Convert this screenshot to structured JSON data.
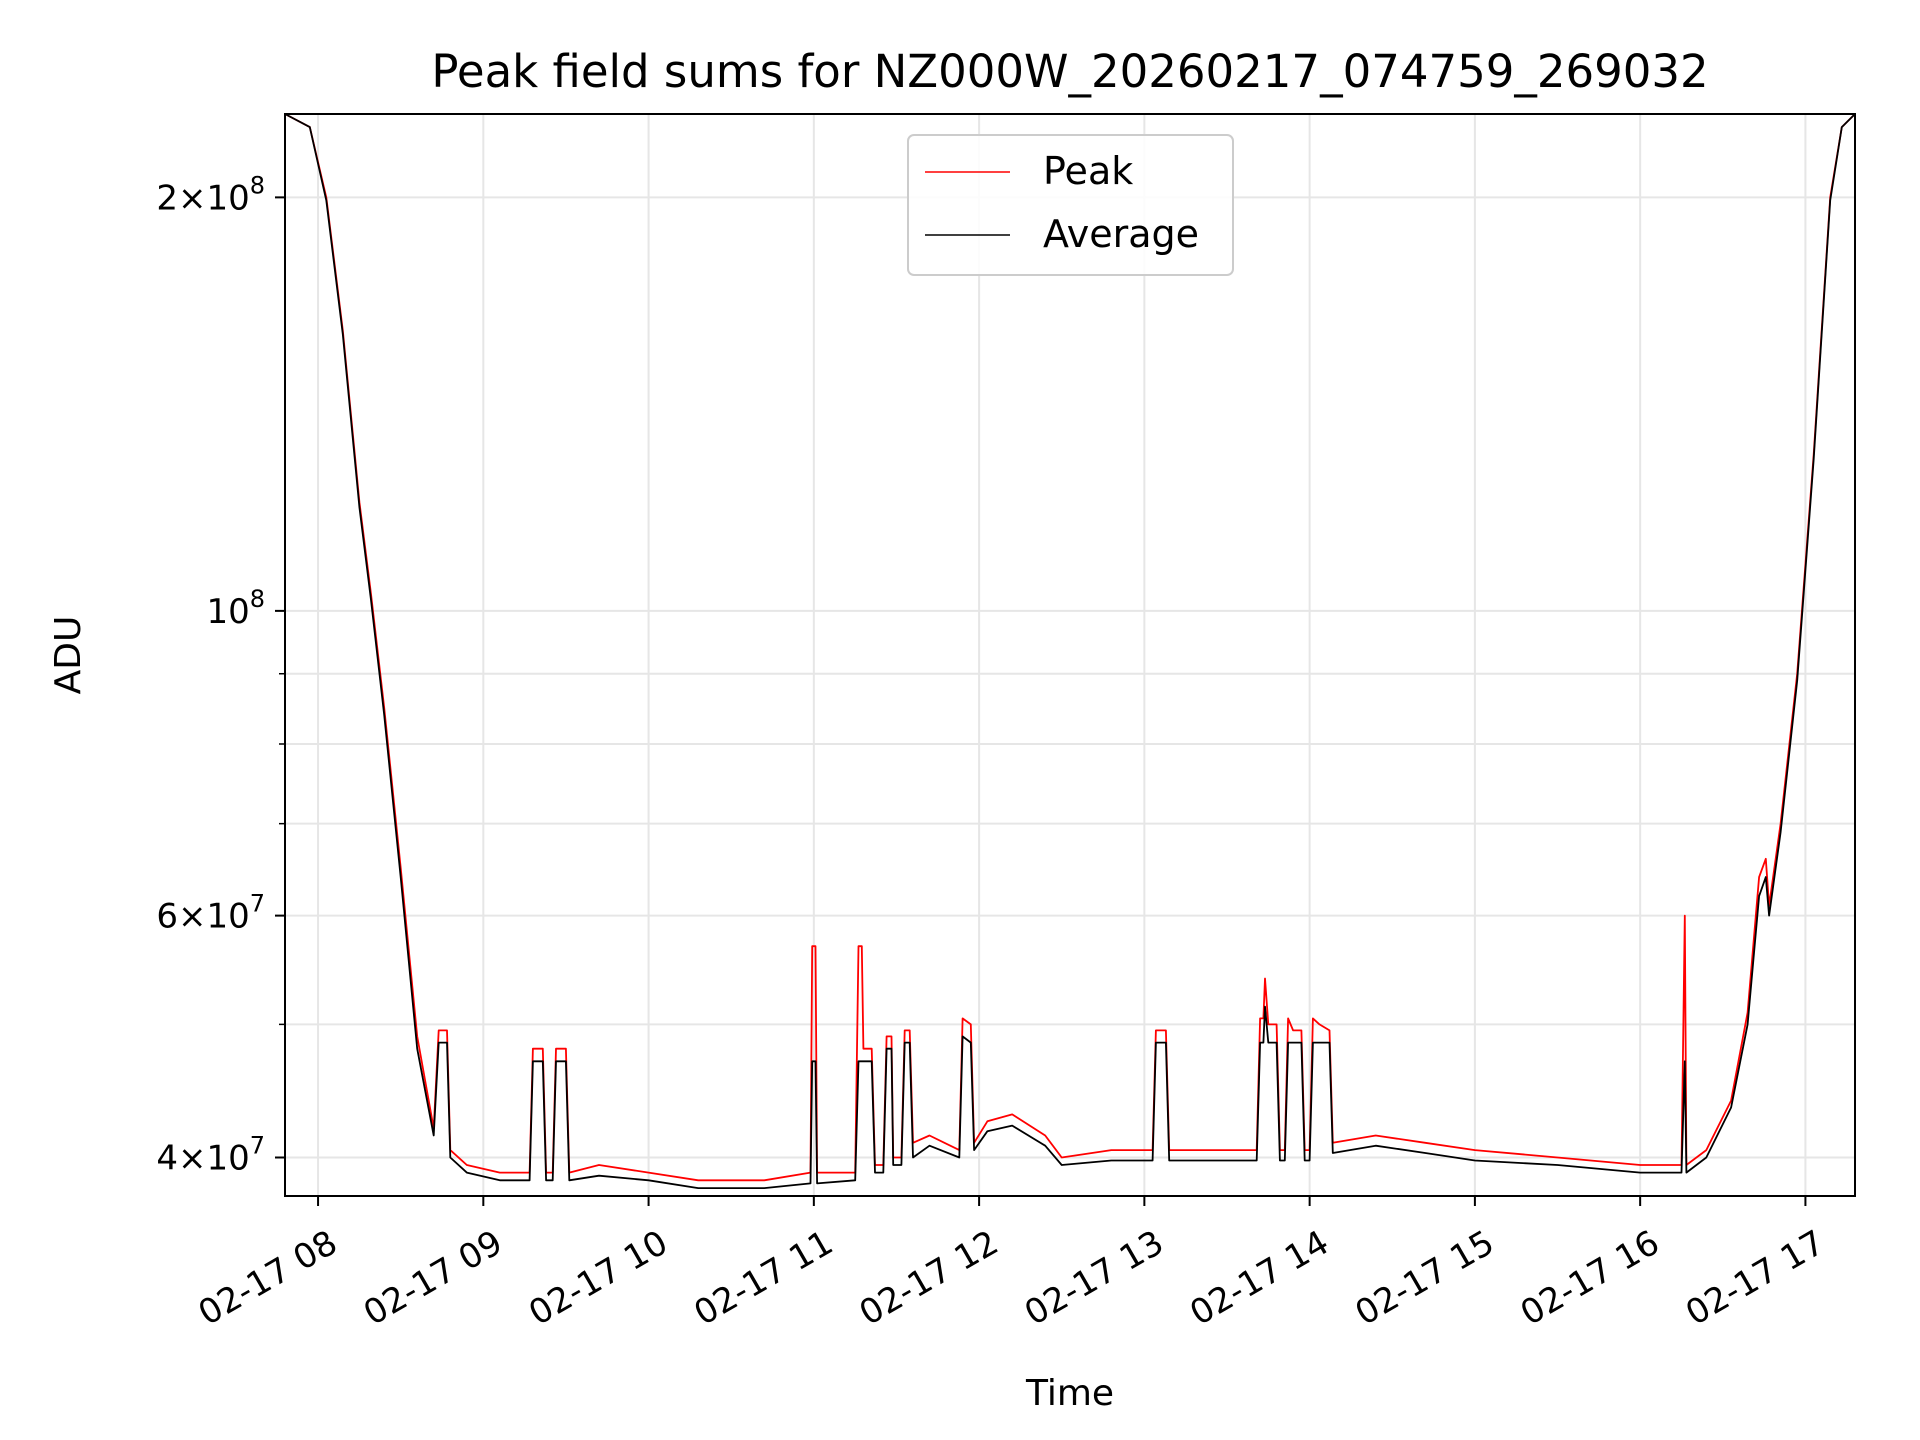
{
  "chart_data": {
    "type": "line",
    "title": "Peak field sums for NZ000W_20260217_074759_269032",
    "xlabel": "Time",
    "ylabel": "ADU",
    "yscale": "log",
    "ylim": [
      37500000,
      230000000
    ],
    "xlim": [
      7.8,
      17.3
    ],
    "grid": true,
    "legend_position": "upper center",
    "x_ticks": [
      {
        "value": 8,
        "label": "02-17 08"
      },
      {
        "value": 9,
        "label": "02-17 09"
      },
      {
        "value": 10,
        "label": "02-17 10"
      },
      {
        "value": 11,
        "label": "02-17 11"
      },
      {
        "value": 12,
        "label": "02-17 12"
      },
      {
        "value": 13,
        "label": "02-17 13"
      },
      {
        "value": 14,
        "label": "02-17 14"
      },
      {
        "value": 15,
        "label": "02-17 15"
      },
      {
        "value": 16,
        "label": "02-17 16"
      },
      {
        "value": 17,
        "label": "02-17 17"
      }
    ],
    "y_major_ticks": [
      {
        "value": 40000000,
        "base": "4",
        "exp": "7"
      },
      {
        "value": 60000000,
        "base": "6",
        "exp": "7"
      },
      {
        "value": 100000000,
        "base": "",
        "exp": "8"
      },
      {
        "value": 200000000,
        "base": "2",
        "exp": "8"
      }
    ],
    "y_minor_ticks": [
      50000000,
      70000000,
      80000000,
      90000000
    ],
    "series": [
      {
        "name": "Peak",
        "color": "#ff0000",
        "points": [
          [
            7.8,
            230000000
          ],
          [
            7.95,
            225000000
          ],
          [
            8.05,
            200000000
          ],
          [
            8.15,
            160000000
          ],
          [
            8.25,
            120000000
          ],
          [
            8.32,
            103000000
          ],
          [
            8.4,
            85000000
          ],
          [
            8.5,
            65000000
          ],
          [
            8.6,
            49000000
          ],
          [
            8.7,
            42000000
          ],
          [
            8.73,
            49500000
          ],
          [
            8.78,
            49500000
          ],
          [
            8.8,
            40500000
          ],
          [
            8.9,
            39500000
          ],
          [
            9.1,
            39000000
          ],
          [
            9.28,
            39000000
          ],
          [
            9.3,
            48000000
          ],
          [
            9.36,
            48000000
          ],
          [
            9.38,
            39000000
          ],
          [
            9.42,
            39000000
          ],
          [
            9.44,
            48000000
          ],
          [
            9.5,
            48000000
          ],
          [
            9.52,
            39000000
          ],
          [
            9.7,
            39500000
          ],
          [
            10.0,
            39000000
          ],
          [
            10.3,
            38500000
          ],
          [
            10.7,
            38500000
          ],
          [
            10.98,
            39000000
          ],
          [
            10.99,
            57000000
          ],
          [
            11.01,
            57000000
          ],
          [
            11.02,
            39000000
          ],
          [
            11.25,
            39000000
          ],
          [
            11.27,
            57000000
          ],
          [
            11.29,
            57000000
          ],
          [
            11.3,
            48000000
          ],
          [
            11.35,
            48000000
          ],
          [
            11.37,
            39500000
          ],
          [
            11.42,
            39500000
          ],
          [
            11.44,
            49000000
          ],
          [
            11.47,
            49000000
          ],
          [
            11.48,
            40000000
          ],
          [
            11.53,
            40000000
          ],
          [
            11.55,
            49500000
          ],
          [
            11.58,
            49500000
          ],
          [
            11.6,
            41000000
          ],
          [
            11.7,
            41500000
          ],
          [
            11.88,
            40500000
          ],
          [
            11.9,
            50500000
          ],
          [
            11.95,
            50000000
          ],
          [
            11.97,
            41000000
          ],
          [
            12.05,
            42500000
          ],
          [
            12.2,
            43000000
          ],
          [
            12.4,
            41500000
          ],
          [
            12.5,
            40000000
          ],
          [
            12.8,
            40500000
          ],
          [
            13.05,
            40500000
          ],
          [
            13.07,
            49500000
          ],
          [
            13.13,
            49500000
          ],
          [
            13.15,
            40500000
          ],
          [
            13.5,
            40500000
          ],
          [
            13.68,
            40500000
          ],
          [
            13.7,
            50500000
          ],
          [
            13.72,
            50500000
          ],
          [
            13.73,
            54000000
          ],
          [
            13.75,
            50000000
          ],
          [
            13.8,
            50000000
          ],
          [
            13.82,
            40500000
          ],
          [
            13.85,
            40500000
          ],
          [
            13.87,
            50500000
          ],
          [
            13.9,
            49500000
          ],
          [
            13.95,
            49500000
          ],
          [
            13.97,
            40500000
          ],
          [
            14.0,
            40500000
          ],
          [
            14.02,
            50500000
          ],
          [
            14.06,
            50000000
          ],
          [
            14.12,
            49500000
          ],
          [
            14.14,
            41000000
          ],
          [
            14.4,
            41500000
          ],
          [
            14.7,
            41000000
          ],
          [
            15.0,
            40500000
          ],
          [
            15.5,
            40000000
          ],
          [
            16.0,
            39500000
          ],
          [
            16.25,
            39500000
          ],
          [
            16.27,
            60000000
          ],
          [
            16.28,
            39500000
          ],
          [
            16.4,
            40500000
          ],
          [
            16.55,
            44000000
          ],
          [
            16.65,
            51000000
          ],
          [
            16.72,
            64000000
          ],
          [
            16.76,
            66000000
          ],
          [
            16.78,
            61000000
          ],
          [
            16.85,
            70000000
          ],
          [
            16.95,
            90000000
          ],
          [
            17.05,
            130000000
          ],
          [
            17.15,
            200000000
          ],
          [
            17.22,
            225000000
          ],
          [
            17.3,
            230000000
          ]
        ]
      },
      {
        "name": "Average",
        "color": "#000000",
        "points": [
          [
            7.8,
            230000000
          ],
          [
            7.95,
            225000000
          ],
          [
            8.05,
            199000000
          ],
          [
            8.15,
            159000000
          ],
          [
            8.25,
            119000000
          ],
          [
            8.32,
            102000000
          ],
          [
            8.4,
            84000000
          ],
          [
            8.5,
            64000000
          ],
          [
            8.6,
            48000000
          ],
          [
            8.7,
            41500000
          ],
          [
            8.73,
            48500000
          ],
          [
            8.78,
            48500000
          ],
          [
            8.8,
            40000000
          ],
          [
            8.9,
            39000000
          ],
          [
            9.1,
            38500000
          ],
          [
            9.28,
            38500000
          ],
          [
            9.3,
            47000000
          ],
          [
            9.36,
            47000000
          ],
          [
            9.38,
            38500000
          ],
          [
            9.42,
            38500000
          ],
          [
            9.44,
            47000000
          ],
          [
            9.5,
            47000000
          ],
          [
            9.52,
            38500000
          ],
          [
            9.7,
            38800000
          ],
          [
            10.0,
            38500000
          ],
          [
            10.3,
            38000000
          ],
          [
            10.7,
            38000000
          ],
          [
            10.98,
            38300000
          ],
          [
            10.99,
            47000000
          ],
          [
            11.01,
            47000000
          ],
          [
            11.02,
            38300000
          ],
          [
            11.25,
            38500000
          ],
          [
            11.27,
            47000000
          ],
          [
            11.29,
            47000000
          ],
          [
            11.3,
            47000000
          ],
          [
            11.35,
            47000000
          ],
          [
            11.37,
            39000000
          ],
          [
            11.42,
            39000000
          ],
          [
            11.44,
            48000000
          ],
          [
            11.47,
            48000000
          ],
          [
            11.48,
            39500000
          ],
          [
            11.53,
            39500000
          ],
          [
            11.55,
            48500000
          ],
          [
            11.58,
            48500000
          ],
          [
            11.6,
            40000000
          ],
          [
            11.7,
            40800000
          ],
          [
            11.88,
            40000000
          ],
          [
            11.9,
            49000000
          ],
          [
            11.95,
            48500000
          ],
          [
            11.97,
            40500000
          ],
          [
            12.05,
            41800000
          ],
          [
            12.2,
            42200000
          ],
          [
            12.4,
            40800000
          ],
          [
            12.5,
            39500000
          ],
          [
            12.8,
            39800000
          ],
          [
            13.05,
            39800000
          ],
          [
            13.07,
            48500000
          ],
          [
            13.13,
            48500000
          ],
          [
            13.15,
            39800000
          ],
          [
            13.5,
            39800000
          ],
          [
            13.68,
            39800000
          ],
          [
            13.7,
            48500000
          ],
          [
            13.72,
            48500000
          ],
          [
            13.73,
            51500000
          ],
          [
            13.75,
            48500000
          ],
          [
            13.8,
            48500000
          ],
          [
            13.82,
            39800000
          ],
          [
            13.85,
            39800000
          ],
          [
            13.87,
            48500000
          ],
          [
            13.9,
            48500000
          ],
          [
            13.95,
            48500000
          ],
          [
            13.97,
            39800000
          ],
          [
            14.0,
            39800000
          ],
          [
            14.02,
            48500000
          ],
          [
            14.06,
            48500000
          ],
          [
            14.12,
            48500000
          ],
          [
            14.14,
            40300000
          ],
          [
            14.4,
            40800000
          ],
          [
            14.7,
            40300000
          ],
          [
            15.0,
            39800000
          ],
          [
            15.5,
            39500000
          ],
          [
            16.0,
            39000000
          ],
          [
            16.25,
            39000000
          ],
          [
            16.27,
            47000000
          ],
          [
            16.28,
            39000000
          ],
          [
            16.4,
            40000000
          ],
          [
            16.55,
            43500000
          ],
          [
            16.65,
            50000000
          ],
          [
            16.72,
            62000000
          ],
          [
            16.76,
            64000000
          ],
          [
            16.78,
            60000000
          ],
          [
            16.85,
            69000000
          ],
          [
            16.95,
            89000000
          ],
          [
            17.05,
            129000000
          ],
          [
            17.15,
            199000000
          ],
          [
            17.22,
            225000000
          ],
          [
            17.3,
            230000000
          ]
        ]
      }
    ]
  }
}
